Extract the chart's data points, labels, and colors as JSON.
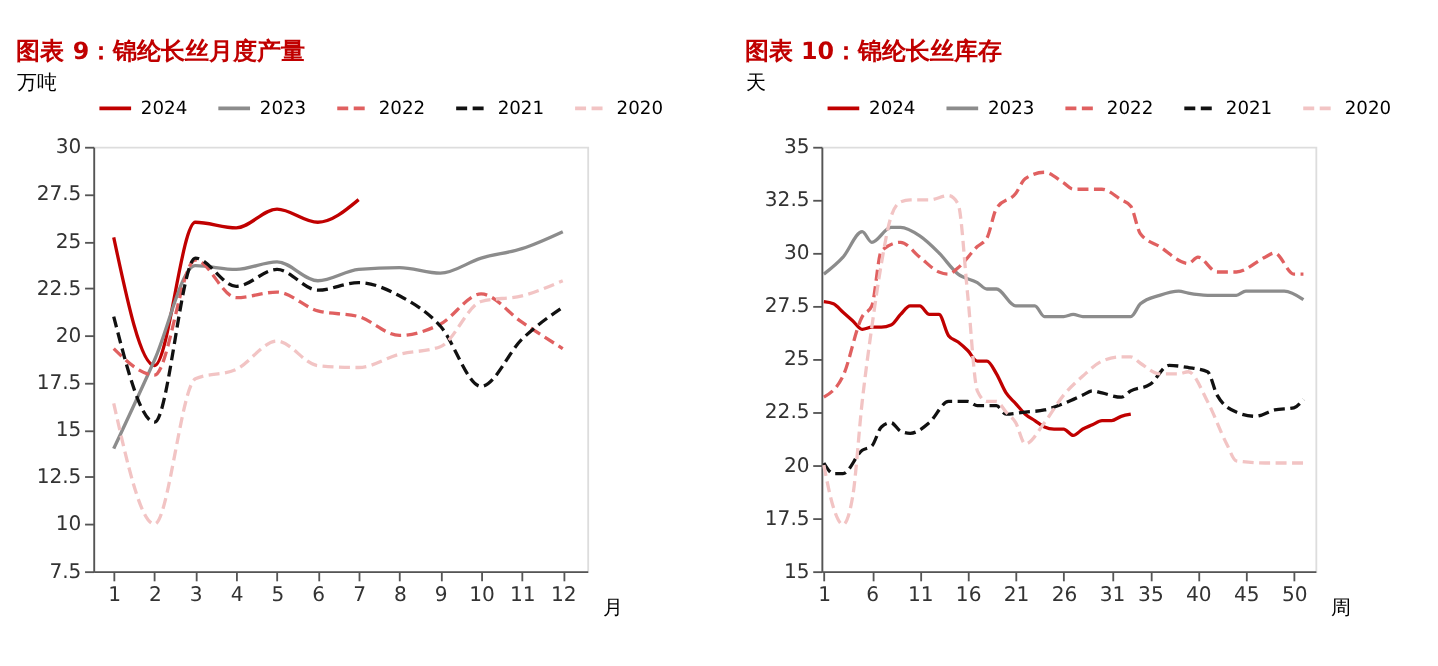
{
  "chart_data": [
    {
      "type": "line",
      "title": "图表 9：锦纶长丝月度产量",
      "ylabel": "万吨",
      "xlabel": "月",
      "legend": "top",
      "grid": false,
      "marker": "none",
      "x": [
        1,
        2,
        3,
        4,
        5,
        6,
        7,
        8,
        9,
        10,
        11,
        12
      ],
      "xlim": [
        0.5,
        12.6
      ],
      "xticks": [
        1,
        2,
        3,
        4,
        5,
        6,
        7,
        8,
        9,
        10,
        11,
        12
      ],
      "ylim": [
        7.5,
        30
      ],
      "yticks": [
        7.5,
        10,
        12.5,
        15,
        17.5,
        20,
        22.5,
        25,
        27.5,
        30
      ],
      "series": [
        {
          "name": "2024",
          "color": "#c00000",
          "line_style": "solid",
          "values": [
            25.2,
            18.4,
            26.0,
            25.7,
            26.7,
            26.0,
            27.2,
            null,
            null,
            null,
            null,
            null
          ]
        },
        {
          "name": "2023",
          "color": "#8c8c8c",
          "line_style": "solid",
          "values": [
            14.0,
            18.7,
            23.7,
            23.5,
            23.9,
            22.9,
            23.5,
            23.6,
            23.3,
            24.1,
            24.6,
            25.5
          ]
        },
        {
          "name": "2022",
          "color": "#e06060",
          "line_style": "dashed",
          "values": [
            19.3,
            17.9,
            24.0,
            22.0,
            22.3,
            21.3,
            21.0,
            20.0,
            20.6,
            22.2,
            20.7,
            19.3
          ]
        },
        {
          "name": "2021",
          "color": "#111111",
          "line_style": "dashed",
          "values": [
            21.0,
            15.4,
            24.1,
            22.6,
            23.5,
            22.4,
            22.8,
            22.1,
            20.5,
            17.3,
            19.8,
            21.5
          ]
        },
        {
          "name": "2020",
          "color": "#f2c4c4",
          "line_style": "dashed",
          "values": [
            16.4,
            10.0,
            17.7,
            18.2,
            19.7,
            18.4,
            18.3,
            19.0,
            19.4,
            21.8,
            22.1,
            22.9
          ]
        }
      ]
    },
    {
      "type": "line",
      "title": "图表 10：锦纶长丝库存",
      "ylabel": "天",
      "xlabel": "周",
      "legend": "top",
      "grid": false,
      "marker": "none",
      "xlim": [
        0.75,
        52.25
      ],
      "xticks": [
        1,
        6,
        11,
        16,
        21,
        26,
        31,
        35,
        40,
        45,
        50
      ],
      "ylim": [
        15,
        35
      ],
      "yticks": [
        15,
        17.5,
        20,
        22.5,
        25,
        27.5,
        30,
        32.5,
        35
      ],
      "series": [
        {
          "name": "2024",
          "color": "#c00000",
          "line_style": "solid",
          "x": [
            1,
            2,
            3,
            4,
            5,
            6,
            7,
            8,
            9,
            10,
            11,
            12,
            13,
            14,
            15,
            16,
            17,
            18,
            19,
            20,
            21,
            22,
            23,
            24,
            25,
            26,
            27,
            28,
            29,
            30,
            31,
            32,
            33
          ],
          "values": [
            27.7,
            27.6,
            27.2,
            26.8,
            26.4,
            26.5,
            26.5,
            26.6,
            27.1,
            27.5,
            27.5,
            27.1,
            27.1,
            26.1,
            25.8,
            25.4,
            24.9,
            24.9,
            24.3,
            23.4,
            22.9,
            22.4,
            22.1,
            21.8,
            21.7,
            21.7,
            21.4,
            21.7,
            21.9,
            22.1,
            22.1,
            22.3,
            22.4
          ]
        },
        {
          "name": "2023",
          "color": "#8c8c8c",
          "line_style": "solid",
          "x": [
            1,
            3,
            5,
            6,
            8,
            9,
            11,
            13,
            15,
            17,
            18,
            19,
            21,
            23,
            24,
            26,
            27,
            28,
            32,
            33,
            34,
            36,
            38,
            39,
            41,
            44,
            45,
            49,
            51
          ],
          "values": [
            29.0,
            29.8,
            31.0,
            30.5,
            31.2,
            31.2,
            30.8,
            30.0,
            29.0,
            28.6,
            28.3,
            28.3,
            27.5,
            27.5,
            27.0,
            27.0,
            27.1,
            27.0,
            27.0,
            27.0,
            27.6,
            28.0,
            28.2,
            28.1,
            28.0,
            28.0,
            28.2,
            28.2,
            27.8
          ]
        },
        {
          "name": "2022",
          "color": "#e06060",
          "line_style": "dashed",
          "x": [
            1,
            3,
            5,
            6,
            7,
            9,
            11,
            13,
            14,
            15,
            17,
            18,
            19,
            21,
            22,
            24,
            26,
            27,
            30,
            32,
            33,
            34,
            36,
            39,
            40,
            42,
            44,
            47,
            48,
            50,
            51
          ],
          "values": [
            23.2,
            24.2,
            27.0,
            27.5,
            30.1,
            30.5,
            29.8,
            29.1,
            29.0,
            29.3,
            30.3,
            30.7,
            32.1,
            32.8,
            33.5,
            33.8,
            33.3,
            33.0,
            33.0,
            32.5,
            32.2,
            30.9,
            30.3,
            29.5,
            29.8,
            29.1,
            29.1,
            29.8,
            30.0,
            29.0,
            29.0
          ]
        },
        {
          "name": "2021",
          "color": "#111111",
          "line_style": "dashed",
          "x": [
            1,
            2,
            3,
            5,
            6,
            7,
            8,
            9,
            10,
            12,
            14,
            16,
            17,
            19,
            20,
            22,
            24,
            26,
            28,
            29,
            30,
            32,
            33,
            35,
            37,
            39,
            41,
            42,
            44,
            46,
            48,
            50,
            51
          ],
          "values": [
            20.1,
            19.6,
            19.6,
            20.7,
            20.9,
            21.8,
            22.0,
            21.6,
            21.5,
            22.0,
            23.0,
            23.0,
            22.8,
            22.8,
            22.4,
            22.5,
            22.6,
            22.9,
            23.3,
            23.5,
            23.4,
            23.2,
            23.5,
            23.8,
            24.7,
            24.6,
            24.4,
            23.3,
            22.5,
            22.3,
            22.6,
            22.7,
            23.1
          ]
        },
        {
          "name": "2020",
          "color": "#f2c4c4",
          "line_style": "dashed",
          "x": [
            1,
            2,
            3,
            4,
            5,
            6,
            7,
            8,
            9,
            10,
            12,
            14,
            15,
            16,
            17,
            18,
            19,
            20,
            21,
            22,
            24,
            26,
            28,
            30,
            32,
            33,
            34,
            36,
            38,
            39,
            41,
            43,
            44,
            47,
            51
          ],
          "values": [
            20.0,
            18.0,
            17.2,
            18.5,
            23.0,
            26.5,
            29.5,
            31.7,
            32.4,
            32.5,
            32.5,
            32.7,
            32.3,
            28.0,
            23.5,
            23.0,
            23.0,
            22.5,
            22.0,
            21.0,
            22.0,
            23.3,
            24.2,
            24.9,
            25.1,
            25.1,
            24.8,
            24.3,
            24.3,
            24.4,
            23.0,
            21.0,
            20.2,
            20.1,
            20.1
          ]
        }
      ]
    }
  ]
}
